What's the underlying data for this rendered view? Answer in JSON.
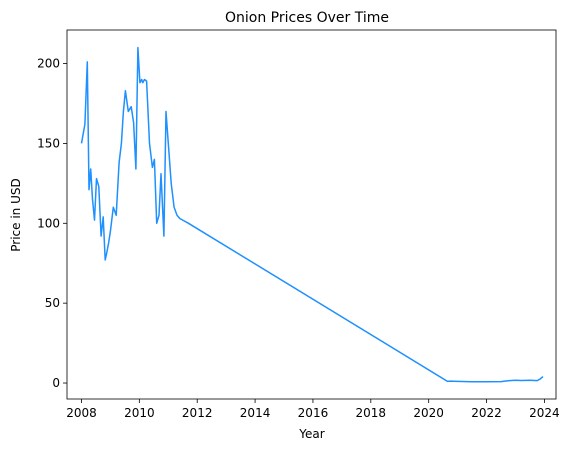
{
  "chart_data": {
    "type": "line",
    "title": "Onion Prices Over Time",
    "xlabel": "Year",
    "ylabel": "Price in USD",
    "xlim": [
      2007.5,
      2024.4
    ],
    "ylim": [
      -10,
      221
    ],
    "xticks": [
      2008,
      2010,
      2012,
      2014,
      2016,
      2018,
      2020,
      2022,
      2024
    ],
    "yticks": [
      0,
      50,
      100,
      150,
      200
    ],
    "grid": false,
    "legend": "none",
    "series_color": "#1e90ff",
    "series": [
      {
        "x": [
          2008.0,
          2008.12,
          2008.2,
          2008.26,
          2008.32,
          2008.38,
          2008.45,
          2008.52,
          2008.6,
          2008.68,
          2008.75,
          2008.82,
          2008.88,
          2008.94,
          2009.0,
          2009.1,
          2009.2,
          2009.3,
          2009.38,
          2009.45,
          2009.52,
          2009.62,
          2009.72,
          2009.8,
          2009.88,
          2009.95,
          2010.02,
          2010.08,
          2010.12,
          2010.18,
          2010.25,
          2010.35,
          2010.45,
          2010.52,
          2010.6,
          2010.68,
          2010.75,
          2010.85,
          2010.92,
          2011.0,
          2011.05,
          2011.1,
          2011.2,
          2011.3,
          2011.4,
          2011.5,
          2011.7,
          2020.65,
          2020.75,
          2021.0,
          2021.5,
          2022.0,
          2022.5,
          2022.8,
          2023.0,
          2023.2,
          2023.5,
          2023.75,
          2023.85,
          2023.95
        ],
        "y": [
          150,
          162,
          201,
          121,
          134,
          115,
          102,
          128,
          123,
          92,
          104,
          77,
          82,
          88,
          95,
          110,
          105,
          138,
          150,
          170,
          183,
          170,
          173,
          163,
          134,
          210,
          188,
          190,
          188,
          190,
          189,
          150,
          135,
          140,
          100,
          105,
          131,
          92,
          170,
          150,
          138,
          125,
          110,
          105,
          103,
          102,
          100,
          1,
          1.2,
          1,
          0.8,
          0.8,
          0.9,
          1.5,
          1.8,
          1.6,
          1.8,
          1.5,
          2.5,
          4
        ]
      }
    ]
  }
}
